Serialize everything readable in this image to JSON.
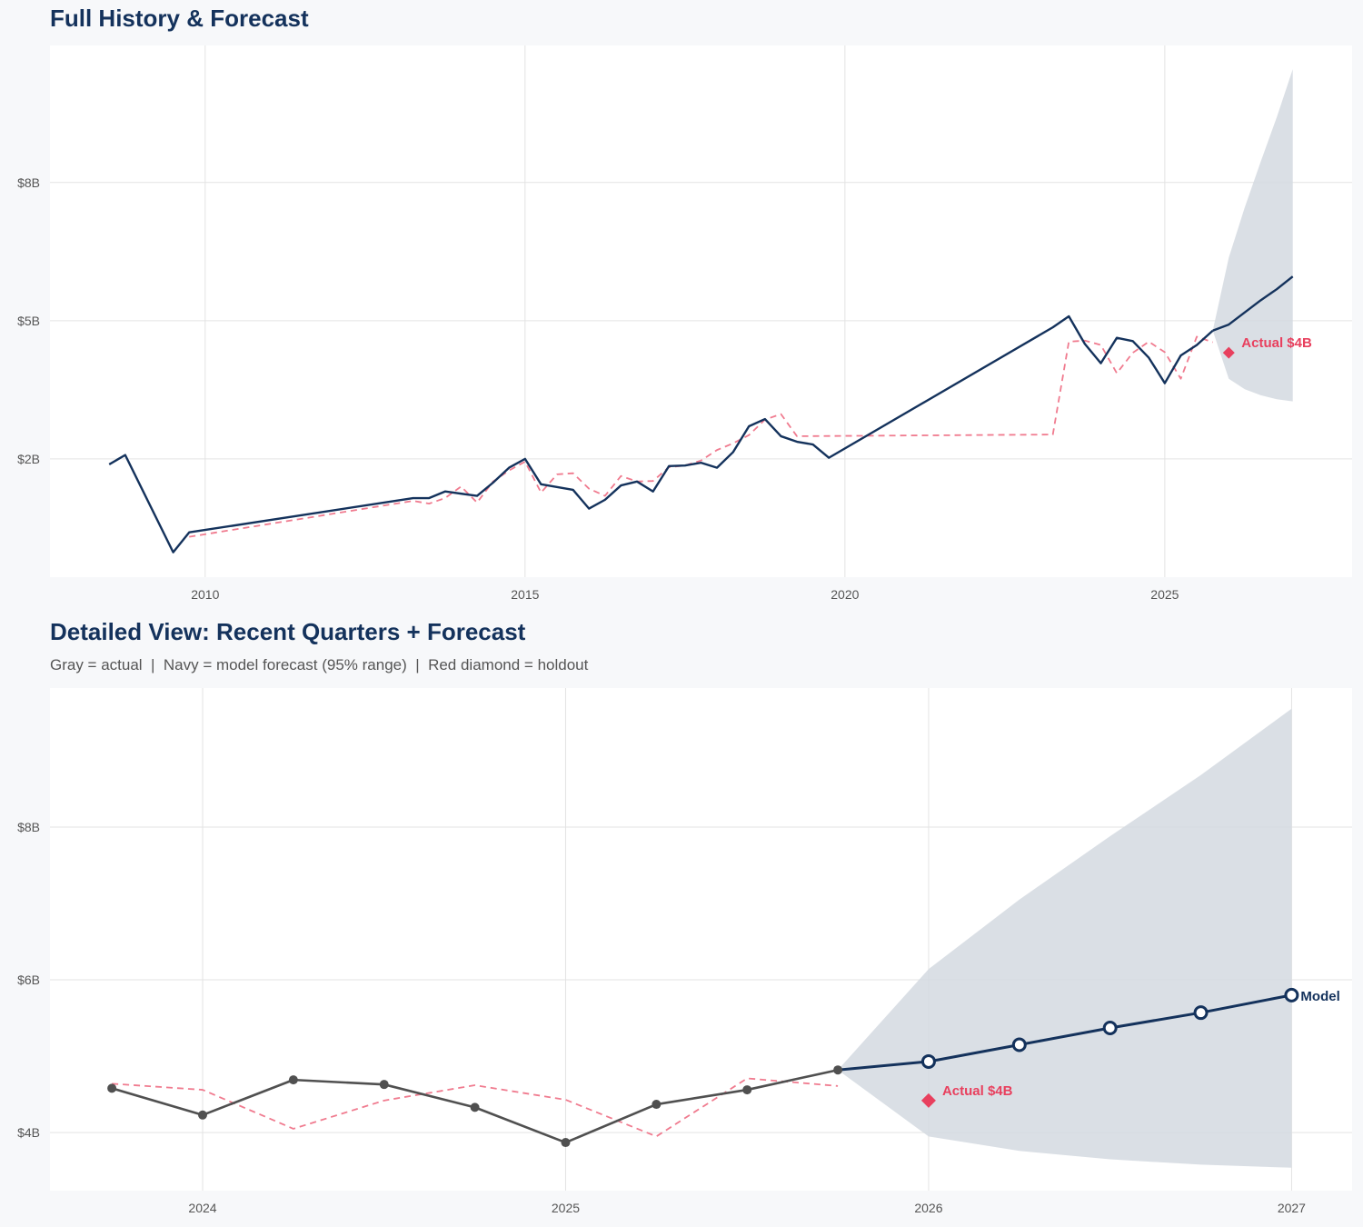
{
  "colors": {
    "background": "#f7f8fa",
    "plot_bg": "#ffffff",
    "grid": "#e3e3e3",
    "navy": "#14325c",
    "gray_actual": "#505050",
    "fitted_red": "#f07b8f",
    "holdout_red": "#e8405e",
    "band": "#d3d9e1"
  },
  "chart_data": [
    {
      "type": "line",
      "title": "Full History & Forecast",
      "grid": true,
      "xlim": [
        "2007-07-28",
        "2027-12-05"
      ],
      "ylim": [
        0.36,
        9.98
      ],
      "y_unit": "$B",
      "x_ticks": [
        {
          "value": "2010-01-01",
          "label": "2010"
        },
        {
          "value": "2015-01-01",
          "label": "2015"
        },
        {
          "value": "2020-01-01",
          "label": "2020"
        },
        {
          "value": "2025-01-01",
          "label": "2025"
        }
      ],
      "y_ticks": [
        {
          "value": 2.5,
          "label": "$2B"
        },
        {
          "value": 5.0,
          "label": "$5B"
        },
        {
          "value": 7.5,
          "label": "$8B"
        }
      ],
      "series": {
        "actual": {
          "color": "#14325c",
          "style": "solid",
          "points": [
            [
              "2008-07-01",
              2.4
            ],
            [
              "2008-10-01",
              2.57
            ],
            [
              "2009-07-01",
              0.81
            ],
            [
              "2009-10-01",
              1.17
            ],
            [
              "2013-04-01",
              1.79
            ],
            [
              "2013-07-01",
              1.79
            ],
            [
              "2013-10-01",
              1.91
            ],
            [
              "2014-04-01",
              1.83
            ],
            [
              "2014-07-01",
              2.07
            ],
            [
              "2014-10-01",
              2.34
            ],
            [
              "2015-01-01",
              2.5
            ],
            [
              "2015-04-01",
              2.04
            ],
            [
              "2015-10-01",
              1.94
            ],
            [
              "2016-01-01",
              1.6
            ],
            [
              "2016-04-01",
              1.76
            ],
            [
              "2016-07-01",
              2.02
            ],
            [
              "2016-10-01",
              2.09
            ],
            [
              "2017-01-01",
              1.91
            ],
            [
              "2017-04-01",
              2.37
            ],
            [
              "2017-07-01",
              2.38
            ],
            [
              "2017-10-01",
              2.43
            ],
            [
              "2018-01-01",
              2.34
            ],
            [
              "2018-04-01",
              2.62
            ],
            [
              "2018-07-01",
              3.09
            ],
            [
              "2018-10-01",
              3.22
            ],
            [
              "2019-01-01",
              2.91
            ],
            [
              "2019-04-01",
              2.81
            ],
            [
              "2019-07-01",
              2.76
            ],
            [
              "2019-10-01",
              2.52
            ],
            [
              "2023-04-01",
              4.88
            ],
            [
              "2023-07-01",
              5.08
            ],
            [
              "2023-10-01",
              4.58
            ],
            [
              "2024-01-01",
              4.23
            ],
            [
              "2024-04-01",
              4.69
            ],
            [
              "2024-07-01",
              4.63
            ],
            [
              "2024-10-01",
              4.33
            ],
            [
              "2025-01-01",
              3.87
            ],
            [
              "2025-04-01",
              4.37
            ],
            [
              "2025-07-01",
              4.56
            ],
            [
              "2025-10-01",
              4.82
            ]
          ]
        },
        "fitted": {
          "color": "#f07b8f",
          "style": "dashed",
          "points": [
            [
              "2009-10-01",
              1.09
            ],
            [
              "2013-04-01",
              1.74
            ],
            [
              "2013-07-01",
              1.69
            ],
            [
              "2013-10-01",
              1.79
            ],
            [
              "2014-01-01",
              2.0
            ],
            [
              "2014-04-01",
              1.71
            ],
            [
              "2014-07-01",
              2.09
            ],
            [
              "2014-10-01",
              2.29
            ],
            [
              "2015-01-01",
              2.45
            ],
            [
              "2015-04-01",
              1.89
            ],
            [
              "2015-07-01",
              2.22
            ],
            [
              "2015-10-01",
              2.24
            ],
            [
              "2016-01-01",
              1.96
            ],
            [
              "2016-04-01",
              1.83
            ],
            [
              "2016-07-01",
              2.19
            ],
            [
              "2016-10-01",
              2.09
            ],
            [
              "2017-01-01",
              2.1
            ],
            [
              "2017-04-01",
              2.35
            ],
            [
              "2017-07-01",
              2.38
            ],
            [
              "2017-10-01",
              2.47
            ],
            [
              "2018-01-01",
              2.66
            ],
            [
              "2018-04-01",
              2.78
            ],
            [
              "2018-07-01",
              2.93
            ],
            [
              "2018-10-01",
              3.21
            ],
            [
              "2019-01-01",
              3.31
            ],
            [
              "2019-04-01",
              2.91
            ],
            [
              "2023-04-01",
              2.94
            ],
            [
              "2023-07-01",
              4.62
            ],
            [
              "2023-10-01",
              4.64
            ],
            [
              "2024-01-01",
              4.56
            ],
            [
              "2024-04-01",
              4.05
            ],
            [
              "2024-07-01",
              4.42
            ],
            [
              "2024-10-01",
              4.62
            ],
            [
              "2025-01-01",
              4.43
            ],
            [
              "2025-04-01",
              3.95
            ],
            [
              "2025-07-01",
              4.71
            ],
            [
              "2025-10-01",
              4.61
            ]
          ]
        },
        "forecast": {
          "color": "#14325c",
          "style": "solid",
          "markers": false,
          "points": [
            [
              "2025-10-01",
              4.82
            ],
            [
              "2026-01-01",
              4.93
            ],
            [
              "2026-04-01",
              5.15
            ],
            [
              "2026-07-01",
              5.37
            ],
            [
              "2026-10-01",
              5.57
            ],
            [
              "2027-01-01",
              5.8
            ]
          ]
        },
        "band_upper": [
          [
            "2025-10-01",
            4.82
          ],
          [
            "2026-01-01",
            6.14
          ],
          [
            "2026-04-01",
            7.05
          ],
          [
            "2026-07-01",
            7.88
          ],
          [
            "2026-10-01",
            8.68
          ],
          [
            "2027-01-01",
            9.55
          ]
        ],
        "band_lower": [
          [
            "2025-10-01",
            4.82
          ],
          [
            "2026-01-01",
            3.95
          ],
          [
            "2026-04-01",
            3.76
          ],
          [
            "2026-07-01",
            3.65
          ],
          [
            "2026-10-01",
            3.58
          ],
          [
            "2027-01-01",
            3.54
          ]
        ],
        "holdout": {
          "date": "2026-01-01",
          "value": 4.42,
          "label": "Actual $4B"
        }
      }
    },
    {
      "type": "line",
      "title": "Detailed View: Recent Quarters + Forecast",
      "subtitle": "Gray = actual  |  Navy = model forecast (95% range)  |  Red diamond = holdout",
      "grid": true,
      "xlim": [
        "2023-07-30",
        "2027-03-01"
      ],
      "ylim": [
        3.24,
        9.82
      ],
      "y_unit": "$B",
      "x_ticks": [
        {
          "value": "2024-01-01",
          "label": "2024"
        },
        {
          "value": "2025-01-01",
          "label": "2025"
        },
        {
          "value": "2026-01-01",
          "label": "2026"
        },
        {
          "value": "2027-01-01",
          "label": "2027"
        }
      ],
      "y_ticks": [
        {
          "value": 4,
          "label": "$4B"
        },
        {
          "value": 6,
          "label": "$6B"
        },
        {
          "value": 8,
          "label": "$8B"
        }
      ],
      "series": {
        "actual": {
          "color": "#505050",
          "style": "solid",
          "markers": true,
          "points": [
            [
              "2023-10-01",
              4.58
            ],
            [
              "2024-01-01",
              4.23
            ],
            [
              "2024-04-01",
              4.69
            ],
            [
              "2024-07-01",
              4.63
            ],
            [
              "2024-10-01",
              4.33
            ],
            [
              "2025-01-01",
              3.87
            ],
            [
              "2025-04-01",
              4.37
            ],
            [
              "2025-07-01",
              4.56
            ],
            [
              "2025-10-01",
              4.82
            ]
          ]
        },
        "fitted": {
          "color": "#f07b8f",
          "style": "dashed",
          "points": [
            [
              "2023-10-01",
              4.64
            ],
            [
              "2024-01-01",
              4.56
            ],
            [
              "2024-04-01",
              4.05
            ],
            [
              "2024-07-01",
              4.42
            ],
            [
              "2024-10-01",
              4.62
            ],
            [
              "2025-01-01",
              4.43
            ],
            [
              "2025-04-01",
              3.95
            ],
            [
              "2025-07-01",
              4.71
            ],
            [
              "2025-10-01",
              4.61
            ]
          ]
        },
        "forecast": {
          "color": "#14325c",
          "style": "solid",
          "markers": true,
          "label": "Model",
          "points": [
            [
              "2025-10-01",
              4.82
            ],
            [
              "2026-01-01",
              4.93
            ],
            [
              "2026-04-01",
              5.15
            ],
            [
              "2026-07-01",
              5.37
            ],
            [
              "2026-10-01",
              5.57
            ],
            [
              "2027-01-01",
              5.8
            ]
          ]
        },
        "band_upper": [
          [
            "2025-10-01",
            4.82
          ],
          [
            "2026-01-01",
            6.14
          ],
          [
            "2026-04-01",
            7.05
          ],
          [
            "2026-07-01",
            7.88
          ],
          [
            "2026-10-01",
            8.68
          ],
          [
            "2027-01-01",
            9.55
          ]
        ],
        "band_lower": [
          [
            "2025-10-01",
            4.82
          ],
          [
            "2026-01-01",
            3.95
          ],
          [
            "2026-04-01",
            3.76
          ],
          [
            "2026-07-01",
            3.65
          ],
          [
            "2026-10-01",
            3.58
          ],
          [
            "2027-01-01",
            3.54
          ]
        ],
        "holdout": {
          "date": "2026-01-01",
          "value": 4.42,
          "label": "Actual $4B"
        }
      }
    }
  ]
}
